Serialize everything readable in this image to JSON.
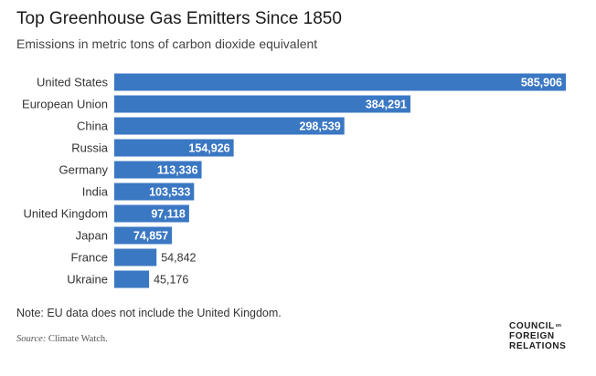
{
  "header": {
    "title": "Top Greenhouse Gas Emitters Since 1850",
    "subtitle": "Emissions in metric tons of carbon dioxide equivalent"
  },
  "footer": {
    "note": "Note: EU data does not include the United Kingdom.",
    "source_label": "Source:",
    "source_text": " Climate Watch."
  },
  "logo": {
    "line1": "COUNCIL",
    "line1_sup": "on",
    "line2": "FOREIGN",
    "line3": "RELATIONS"
  },
  "colors": {
    "bar": "#3b78c3",
    "label_inside": "#ffffff",
    "label_outside": "#333333",
    "category": "#333333"
  },
  "chart_data": {
    "type": "bar",
    "orientation": "horizontal",
    "title": "Top Greenhouse Gas Emitters Since 1850",
    "subtitle": "Emissions in metric tons of carbon dioxide equivalent",
    "categories": [
      "United States",
      "European Union",
      "China",
      "Russia",
      "Germany",
      "India",
      "United Kingdom",
      "Japan",
      "France",
      "Ukraine"
    ],
    "values": [
      585906,
      384291,
      298539,
      154926,
      113336,
      103533,
      97118,
      74857,
      54842,
      45176
    ],
    "value_labels": [
      "585,906",
      "384,291",
      "298,539",
      "154,926",
      "113,336",
      "103,533",
      "97,118",
      "74,857",
      "54,842",
      "45,176"
    ],
    "xlim": [
      0,
      585906
    ],
    "grid": false,
    "legend": "none"
  }
}
